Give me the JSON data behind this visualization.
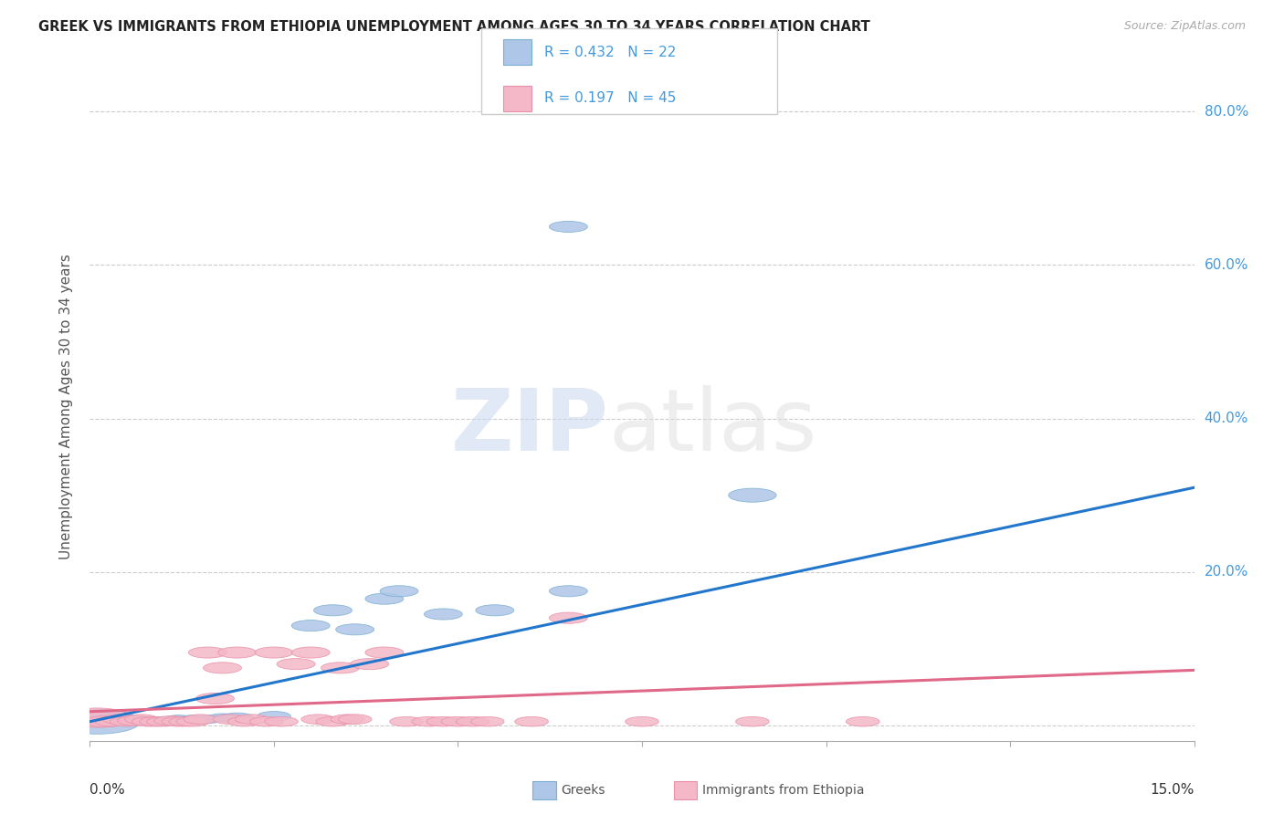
{
  "title": "GREEK VS IMMIGRANTS FROM ETHIOPIA UNEMPLOYMENT AMONG AGES 30 TO 34 YEARS CORRELATION CHART",
  "source": "Source: ZipAtlas.com",
  "ylabel": "Unemployment Among Ages 30 to 34 years",
  "xmin": 0.0,
  "xmax": 0.15,
  "ymin": -0.02,
  "ymax": 0.85,
  "yticks": [
    0.0,
    0.2,
    0.4,
    0.6,
    0.8
  ],
  "ytick_labels": [
    "",
    "20.0%",
    "40.0%",
    "60.0%",
    "80.0%"
  ],
  "background_color": "#ffffff",
  "grid_color": "#cccccc",
  "title_color": "#222222",
  "source_color": "#aaaaaa",
  "axis_label_color": "#4499dd",
  "series": [
    {
      "name": "Greeks",
      "color": "#aec6e8",
      "border_color": "#7aafd0",
      "trend_color": "#2277cc",
      "R": 0.432,
      "N": 22,
      "points": [
        [
          0.001,
          0.005,
          18
        ],
        [
          0.003,
          0.008,
          8
        ],
        [
          0.005,
          0.005,
          6
        ],
        [
          0.006,
          0.008,
          6
        ],
        [
          0.008,
          0.006,
          6
        ],
        [
          0.01,
          0.006,
          6
        ],
        [
          0.012,
          0.008,
          6
        ],
        [
          0.014,
          0.008,
          6
        ],
        [
          0.016,
          0.008,
          6
        ],
        [
          0.018,
          0.01,
          6
        ],
        [
          0.02,
          0.01,
          7
        ],
        [
          0.025,
          0.012,
          7
        ],
        [
          0.03,
          0.13,
          8
        ],
        [
          0.033,
          0.15,
          8
        ],
        [
          0.036,
          0.125,
          8
        ],
        [
          0.04,
          0.165,
          8
        ],
        [
          0.042,
          0.175,
          8
        ],
        [
          0.048,
          0.145,
          8
        ],
        [
          0.055,
          0.15,
          8
        ],
        [
          0.065,
          0.175,
          8
        ],
        [
          0.09,
          0.3,
          10
        ],
        [
          0.065,
          0.65,
          8
        ]
      ],
      "trend_x": [
        0.0,
        0.15
      ],
      "trend_y": [
        0.005,
        0.31
      ]
    },
    {
      "name": "Immigrants from Ethiopia",
      "color": "#f4b8c8",
      "border_color": "#e890a8",
      "trend_color": "#e06888",
      "R": 0.197,
      "N": 45,
      "points": [
        [
          0.001,
          0.01,
          14
        ],
        [
          0.002,
          0.005,
          8
        ],
        [
          0.003,
          0.005,
          7
        ],
        [
          0.004,
          0.008,
          7
        ],
        [
          0.005,
          0.005,
          7
        ],
        [
          0.006,
          0.006,
          7
        ],
        [
          0.007,
          0.008,
          7
        ],
        [
          0.008,
          0.005,
          7
        ],
        [
          0.009,
          0.005,
          7
        ],
        [
          0.01,
          0.005,
          7
        ],
        [
          0.011,
          0.006,
          7
        ],
        [
          0.012,
          0.005,
          7
        ],
        [
          0.013,
          0.005,
          7
        ],
        [
          0.014,
          0.005,
          7
        ],
        [
          0.015,
          0.008,
          7
        ],
        [
          0.016,
          0.095,
          8
        ],
        [
          0.017,
          0.035,
          8
        ],
        [
          0.018,
          0.075,
          8
        ],
        [
          0.019,
          0.008,
          7
        ],
        [
          0.02,
          0.095,
          8
        ],
        [
          0.021,
          0.005,
          7
        ],
        [
          0.022,
          0.008,
          7
        ],
        [
          0.024,
          0.005,
          7
        ],
        [
          0.025,
          0.095,
          8
        ],
        [
          0.026,
          0.005,
          7
        ],
        [
          0.028,
          0.08,
          8
        ],
        [
          0.03,
          0.095,
          8
        ],
        [
          0.031,
          0.008,
          7
        ],
        [
          0.033,
          0.005,
          7
        ],
        [
          0.034,
          0.075,
          8
        ],
        [
          0.035,
          0.008,
          7
        ],
        [
          0.036,
          0.008,
          7
        ],
        [
          0.038,
          0.08,
          8
        ],
        [
          0.04,
          0.095,
          8
        ],
        [
          0.043,
          0.005,
          7
        ],
        [
          0.046,
          0.005,
          7
        ],
        [
          0.048,
          0.005,
          7
        ],
        [
          0.05,
          0.005,
          7
        ],
        [
          0.052,
          0.005,
          7
        ],
        [
          0.054,
          0.005,
          7
        ],
        [
          0.06,
          0.005,
          7
        ],
        [
          0.065,
          0.14,
          8
        ],
        [
          0.075,
          0.005,
          7
        ],
        [
          0.09,
          0.005,
          7
        ],
        [
          0.105,
          0.005,
          7
        ]
      ],
      "trend_x": [
        0.0,
        0.15
      ],
      "trend_y": [
        0.018,
        0.072
      ]
    }
  ],
  "legend_items": [
    {
      "label": "R = 0.432   N = 22",
      "color": "#aec6e8",
      "border": "#7aafd0"
    },
    {
      "label": "R = 0.197   N = 45",
      "color": "#f4b8c8",
      "border": "#e890a8"
    }
  ],
  "bottom_legend": [
    {
      "label": "Greeks",
      "color": "#aec6e8",
      "border": "#7aafd0"
    },
    {
      "label": "Immigrants from Ethiopia",
      "color": "#f4b8c8",
      "border": "#e890a8"
    }
  ]
}
